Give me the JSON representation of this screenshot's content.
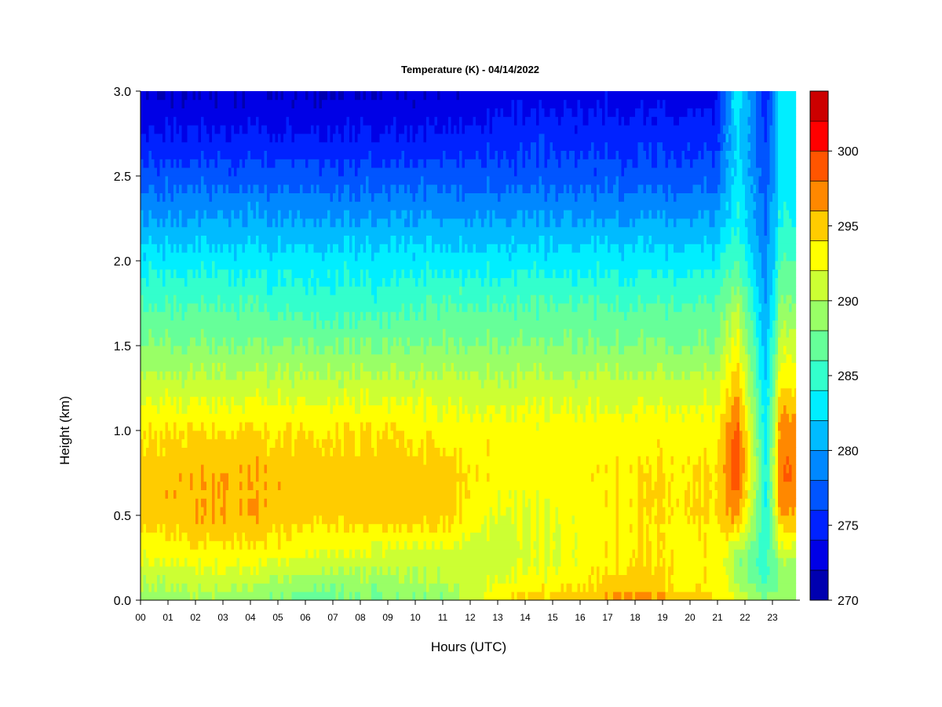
{
  "chart_data": {
    "type": "heatmap",
    "title": "Temperature (K) - 04/14/2022",
    "xlabel": "Hours (UTC)",
    "ylabel": "Height (km)",
    "xlim": [
      0,
      24
    ],
    "ylim": [
      0,
      3.0
    ],
    "x_ticks": [
      "00",
      "01",
      "02",
      "03",
      "04",
      "05",
      "06",
      "07",
      "08",
      "09",
      "10",
      "11",
      "12",
      "13",
      "14",
      "15",
      "16",
      "17",
      "18",
      "19",
      "20",
      "21",
      "22",
      "23"
    ],
    "y_ticks": [
      "0.0",
      "0.5",
      "1.0",
      "1.5",
      "2.0",
      "2.5",
      "3.0"
    ],
    "colorbar": {
      "range": [
        270,
        304
      ],
      "ticks": [
        "270",
        "275",
        "280",
        "285",
        "290",
        "295",
        "300"
      ],
      "levels": [
        270,
        272,
        274,
        276,
        278,
        280,
        282,
        284,
        286,
        288,
        290,
        292,
        294,
        296,
        298,
        300,
        302,
        304
      ],
      "colors": [
        "#00007f",
        "#0000b0",
        "#0000e6",
        "#0022ff",
        "#0055ff",
        "#0088ff",
        "#00bbff",
        "#00eeff",
        "#33ffcc",
        "#66ff99",
        "#99ff66",
        "#ccff33",
        "#ffff00",
        "#ffcc00",
        "#ff8800",
        "#ff5500",
        "#ff0000",
        "#cc0000",
        "#800000"
      ]
    },
    "height_samples_km": [
      0.0,
      0.1,
      0.25,
      0.5,
      0.75,
      1.0,
      1.25,
      1.5,
      1.75,
      2.0,
      2.25,
      2.5,
      2.75,
      3.0
    ],
    "profiles": [
      {
        "hour": 0,
        "temperature_K": [
          289,
          290,
          292,
          295,
          295,
          294,
          291,
          288,
          286,
          283,
          280,
          277,
          274,
          272
        ]
      },
      {
        "hour": 3,
        "temperature_K": [
          289,
          291,
          293,
          296,
          296,
          294,
          291,
          288,
          286,
          283,
          280,
          277,
          274,
          272
        ]
      },
      {
        "hour": 6,
        "temperature_K": [
          287,
          289,
          292,
          295,
          295,
          294,
          291,
          288,
          285,
          283,
          280,
          277,
          274,
          272
        ]
      },
      {
        "hour": 9,
        "temperature_K": [
          288,
          289,
          291,
          295,
          295,
          294,
          291,
          288,
          285,
          283,
          280,
          277,
          274,
          272
        ]
      },
      {
        "hour": 11,
        "temperature_K": [
          288,
          290,
          291,
          295,
          295,
          293,
          291,
          288,
          286,
          283,
          280,
          277,
          274,
          272
        ]
      },
      {
        "hour": 13,
        "temperature_K": [
          294,
          292,
          291,
          292,
          293,
          293,
          291,
          288,
          286,
          283,
          280,
          277,
          275,
          273
        ]
      },
      {
        "hour": 15,
        "temperature_K": [
          295,
          293,
          292,
          292,
          293,
          293,
          291,
          288,
          286,
          283,
          280,
          277,
          275,
          273
        ]
      },
      {
        "hour": 18,
        "temperature_K": [
          297,
          295,
          294,
          294,
          294,
          293,
          291,
          288,
          286,
          283,
          280,
          277,
          275,
          273
        ]
      },
      {
        "hour": 21,
        "temperature_K": [
          294,
          293,
          293,
          294,
          294,
          293,
          291,
          288,
          286,
          283,
          280,
          277,
          275,
          273
        ]
      },
      {
        "hour": 21.7,
        "temperature_K": [
          292,
          290,
          289,
          297,
          300,
          299,
          296,
          293,
          290,
          286,
          284,
          283,
          283,
          284
        ]
      },
      {
        "hour": 22.8,
        "temperature_K": [
          289,
          286,
          285,
          284,
          284,
          283,
          282,
          281,
          280,
          279,
          278,
          277,
          276,
          275
        ]
      },
      {
        "hour": 23.3,
        "temperature_K": [
          289,
          288,
          290,
          296,
          298,
          297,
          294,
          291,
          288,
          286,
          284,
          283,
          283,
          283
        ]
      }
    ]
  }
}
